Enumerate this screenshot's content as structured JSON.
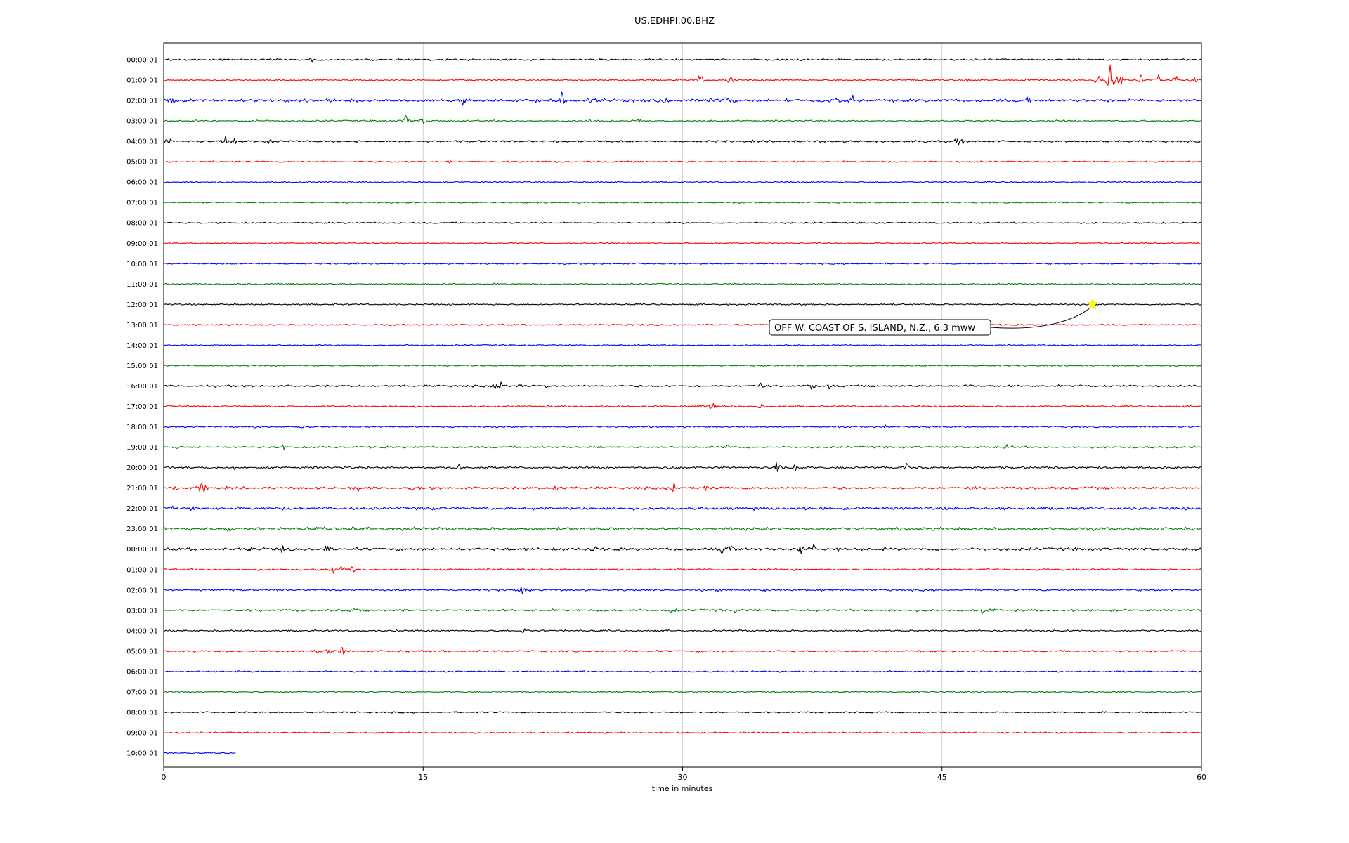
{
  "chart_data": {
    "type": "line",
    "title": "US.EDHPI.00.BHZ",
    "xlabel": "time in minutes",
    "ylabel": "",
    "xlim": [
      0,
      60
    ],
    "x_ticks": [
      0,
      15,
      30,
      45,
      60
    ],
    "grid_x": true,
    "trace_colors": [
      "#000000",
      "#ff0000",
      "#0000ff",
      "#008000"
    ],
    "rows": [
      {
        "label": "00:00:01",
        "noise": 0.7,
        "bursts": [
          [
            8.5,
            1.2
          ]
        ]
      },
      {
        "label": "01:00:01",
        "noise": 0.7,
        "bursts": [
          [
            31.0,
            4.5
          ],
          [
            32.8,
            3.5
          ],
          [
            43.0,
            1.6
          ],
          [
            46.5,
            3.0
          ],
          [
            50.0,
            1.4
          ],
          [
            52.5,
            1.6
          ],
          [
            54.0,
            5.0
          ],
          [
            54.7,
            14.0
          ],
          [
            55.3,
            5.0
          ],
          [
            56.5,
            4.0
          ],
          [
            57.5,
            5.0
          ],
          [
            58.5,
            3.5
          ],
          [
            59.6,
            4.0
          ]
        ]
      },
      {
        "label": "02:00:01",
        "noise": 1.2,
        "bursts": [
          [
            0.5,
            2.5
          ],
          [
            4.5,
            2.0
          ],
          [
            9.5,
            2.0
          ],
          [
            16.5,
            2.0
          ],
          [
            17.3,
            3.0
          ],
          [
            21.5,
            2.0
          ],
          [
            23.0,
            5.0
          ],
          [
            24.6,
            3.5
          ],
          [
            25.2,
            5.5
          ],
          [
            29.0,
            3.0
          ],
          [
            31.5,
            4.0
          ],
          [
            32.6,
            4.5
          ],
          [
            36.0,
            2.0
          ],
          [
            38.0,
            2.0
          ],
          [
            39.0,
            3.0
          ],
          [
            39.8,
            4.0
          ],
          [
            50.0,
            2.5
          ]
        ]
      },
      {
        "label": "03:00:01",
        "noise": 0.7,
        "bursts": [
          [
            5.3,
            2.5
          ],
          [
            14.0,
            4.0
          ],
          [
            15.0,
            2.5
          ],
          [
            23.5,
            1.5
          ],
          [
            24.5,
            2.0
          ],
          [
            27.5,
            1.3
          ],
          [
            31.5,
            2.0
          ]
        ]
      },
      {
        "label": "04:00:01",
        "noise": 0.8,
        "bursts": [
          [
            0.3,
            2.5
          ],
          [
            3.6,
            3.5
          ],
          [
            4.1,
            4.0
          ],
          [
            6.1,
            3.0
          ],
          [
            44.0,
            2.0
          ],
          [
            46.0,
            3.5
          ]
        ]
      },
      {
        "label": "05:00:01",
        "noise": 0.6,
        "bursts": [
          [
            16.5,
            1.0
          ]
        ]
      },
      {
        "label": "06:00:01",
        "noise": 0.6,
        "bursts": []
      },
      {
        "label": "07:00:01",
        "noise": 0.6,
        "bursts": []
      },
      {
        "label": "08:00:01",
        "noise": 0.6,
        "bursts": []
      },
      {
        "label": "09:00:01",
        "noise": 0.6,
        "bursts": []
      },
      {
        "label": "10:00:01",
        "noise": 0.6,
        "bursts": []
      },
      {
        "label": "11:00:01",
        "noise": 0.6,
        "bursts": []
      },
      {
        "label": "12:00:01",
        "noise": 0.6,
        "bursts": []
      },
      {
        "label": "13:00:01",
        "noise": 0.6,
        "bursts": []
      },
      {
        "label": "14:00:01",
        "noise": 0.6,
        "bursts": []
      },
      {
        "label": "15:00:01",
        "noise": 0.6,
        "bursts": []
      },
      {
        "label": "16:00:01",
        "noise": 0.8,
        "bursts": [
          [
            19.2,
            4.0
          ],
          [
            19.4,
            7.0
          ],
          [
            20.5,
            2.5
          ],
          [
            22.0,
            1.5
          ],
          [
            34.5,
            3.0
          ],
          [
            37.5,
            2.5
          ],
          [
            38.5,
            2.5
          ],
          [
            46.5,
            2.5
          ],
          [
            53.0,
            1.2
          ]
        ]
      },
      {
        "label": "17:00:01",
        "noise": 0.7,
        "bursts": [
          [
            31.0,
            2.5
          ],
          [
            31.7,
            3.0
          ],
          [
            33.0,
            2.5
          ],
          [
            34.5,
            2.5
          ]
        ]
      },
      {
        "label": "18:00:01",
        "noise": 0.7,
        "bursts": [
          [
            5.3,
            1.5
          ],
          [
            8.0,
            1.5
          ],
          [
            41.8,
            1.8
          ]
        ]
      },
      {
        "label": "19:00:01",
        "noise": 0.8,
        "bursts": [
          [
            1.0,
            1.8
          ],
          [
            6.9,
            1.8
          ],
          [
            25.3,
            1.5
          ],
          [
            32.6,
            2.5
          ],
          [
            48.8,
            2.5
          ]
        ]
      },
      {
        "label": "20:00:01",
        "noise": 0.9,
        "bursts": [
          [
            4.1,
            2.5
          ],
          [
            17.1,
            3.5
          ],
          [
            29.5,
            3.0
          ],
          [
            35.5,
            5.0
          ],
          [
            36.5,
            4.5
          ],
          [
            43.0,
            5.0
          ],
          [
            44.1,
            4.5
          ]
        ]
      },
      {
        "label": "21:00:01",
        "noise": 1.0,
        "bursts": [
          [
            0.6,
            3.0
          ],
          [
            2.2,
            5.0
          ],
          [
            11.2,
            3.0
          ],
          [
            14.4,
            2.5
          ],
          [
            22.7,
            4.0
          ],
          [
            29.5,
            5.0
          ],
          [
            31.3,
            2.0
          ],
          [
            46.7,
            3.0
          ]
        ]
      },
      {
        "label": "22:00:01",
        "noise": 1.2,
        "bursts": [
          [
            0.5,
            2.5
          ],
          [
            1.5,
            3.0
          ],
          [
            15.5,
            1.5
          ],
          [
            34.0,
            1.3
          ],
          [
            48.5,
            1.5
          ]
        ]
      },
      {
        "label": "23:00:01",
        "noise": 1.3,
        "bursts": [
          [
            3.8,
            3.5
          ],
          [
            10.9,
            3.0
          ]
        ]
      },
      {
        "label": "00:00:01",
        "noise": 1.2,
        "bursts": [
          [
            5.0,
            2.5
          ],
          [
            6.8,
            3.0
          ],
          [
            9.4,
            3.5
          ],
          [
            24.8,
            3.5
          ],
          [
            32.3,
            3.5
          ],
          [
            32.9,
            4.5
          ],
          [
            36.9,
            5.0
          ],
          [
            37.6,
            3.0
          ],
          [
            39.0,
            2.0
          ]
        ]
      },
      {
        "label": "01:00:01",
        "noise": 0.8,
        "bursts": [
          [
            9.8,
            2.5
          ],
          [
            10.3,
            3.5
          ],
          [
            10.9,
            2.5
          ]
        ]
      },
      {
        "label": "02:00:01",
        "noise": 0.8,
        "bursts": [
          [
            20.7,
            3.0
          ],
          [
            21.2,
            2.0
          ],
          [
            32.2,
            2.5
          ],
          [
            34.7,
            1.5
          ],
          [
            38.0,
            1.5
          ]
        ]
      },
      {
        "label": "03:00:01",
        "noise": 0.9,
        "bursts": [
          [
            11.0,
            1.2
          ],
          [
            13.9,
            1.5
          ],
          [
            29.3,
            2.5
          ],
          [
            33.0,
            3.0
          ],
          [
            34.2,
            2.0
          ],
          [
            47.3,
            2.5
          ],
          [
            48.0,
            2.0
          ]
        ]
      },
      {
        "label": "04:00:01",
        "noise": 0.7,
        "bursts": [
          [
            20.8,
            2.5
          ]
        ]
      },
      {
        "label": "05:00:01",
        "noise": 0.7,
        "bursts": [
          [
            8.9,
            3.0
          ],
          [
            9.5,
            2.0
          ],
          [
            10.3,
            4.0
          ]
        ]
      },
      {
        "label": "06:00:01",
        "noise": 0.6,
        "bursts": []
      },
      {
        "label": "07:00:01",
        "noise": 0.6,
        "bursts": []
      },
      {
        "label": "08:00:01",
        "noise": 0.6,
        "bursts": []
      },
      {
        "label": "09:00:01",
        "noise": 0.6,
        "bursts": []
      },
      {
        "label": "10:00:01",
        "noise": 0.6,
        "bursts": [],
        "x_end": 4.2
      }
    ],
    "annotations": [
      {
        "text": "OFF W. COAST OF S. ISLAND, N.Z., 6.3 mww",
        "row_index": 12,
        "x": 53.7,
        "marker": "star",
        "marker_color": "#ffff00"
      }
    ]
  }
}
